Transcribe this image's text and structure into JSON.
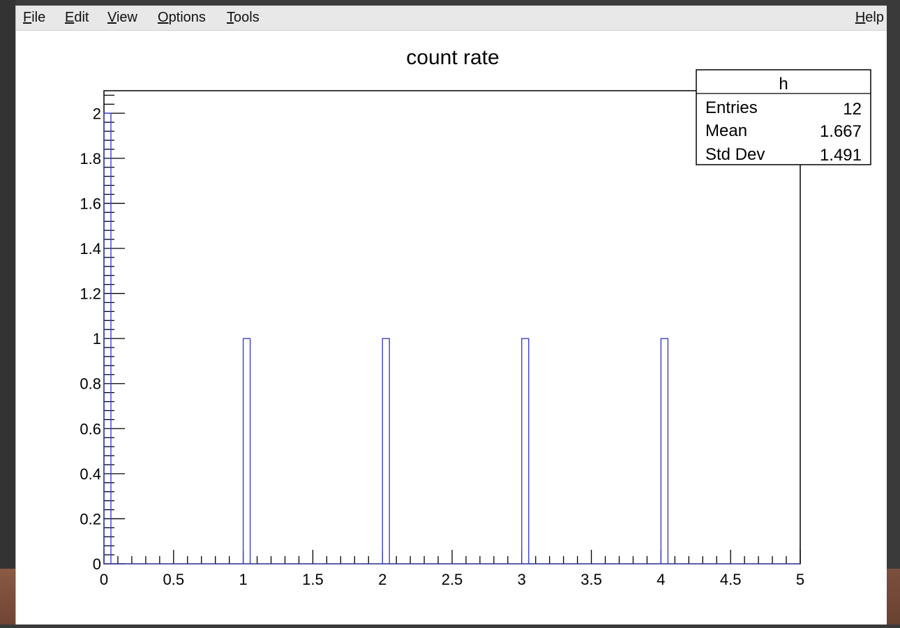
{
  "menubar": {
    "items": [
      {
        "label": "File",
        "mnemonic": "F",
        "rest": "ile"
      },
      {
        "label": "Edit",
        "mnemonic": "E",
        "rest": "dit"
      },
      {
        "label": "View",
        "mnemonic": "V",
        "rest": "iew"
      },
      {
        "label": "Options",
        "mnemonic": "O",
        "rest": "ptions"
      },
      {
        "label": "Tools",
        "mnemonic": "T",
        "rest": "ools"
      }
    ],
    "help": {
      "label": "Help",
      "mnemonic": "H",
      "rest": "elp"
    }
  },
  "stats_box": {
    "name": "h",
    "rows": [
      {
        "label": "Entries",
        "value": "12"
      },
      {
        "label": "Mean",
        "value": "1.667"
      },
      {
        "label": "Std Dev",
        "value": "1.491"
      }
    ]
  },
  "chart_data": {
    "type": "bar",
    "title": "count rate",
    "xlabel": "",
    "ylabel": "",
    "xlim": [
      0,
      5
    ],
    "ylim": [
      0,
      2.1
    ],
    "bin_width": 0.05,
    "bins": [
      {
        "x": 0.0,
        "value": 2
      },
      {
        "x": 1.0,
        "value": 1
      },
      {
        "x": 2.0,
        "value": 1
      },
      {
        "x": 3.0,
        "value": 1
      },
      {
        "x": 4.0,
        "value": 1
      }
    ],
    "x_ticks": [
      "0",
      "0.5",
      "1",
      "1.5",
      "2",
      "2.5",
      "3",
      "3.5",
      "4",
      "4.5",
      "5"
    ],
    "y_ticks": [
      "0",
      "0.2",
      "0.4",
      "0.6",
      "0.8",
      "1",
      "1.2",
      "1.4",
      "1.6",
      "1.8",
      "2"
    ],
    "line_color": "#3a3fd0",
    "grid": false
  }
}
